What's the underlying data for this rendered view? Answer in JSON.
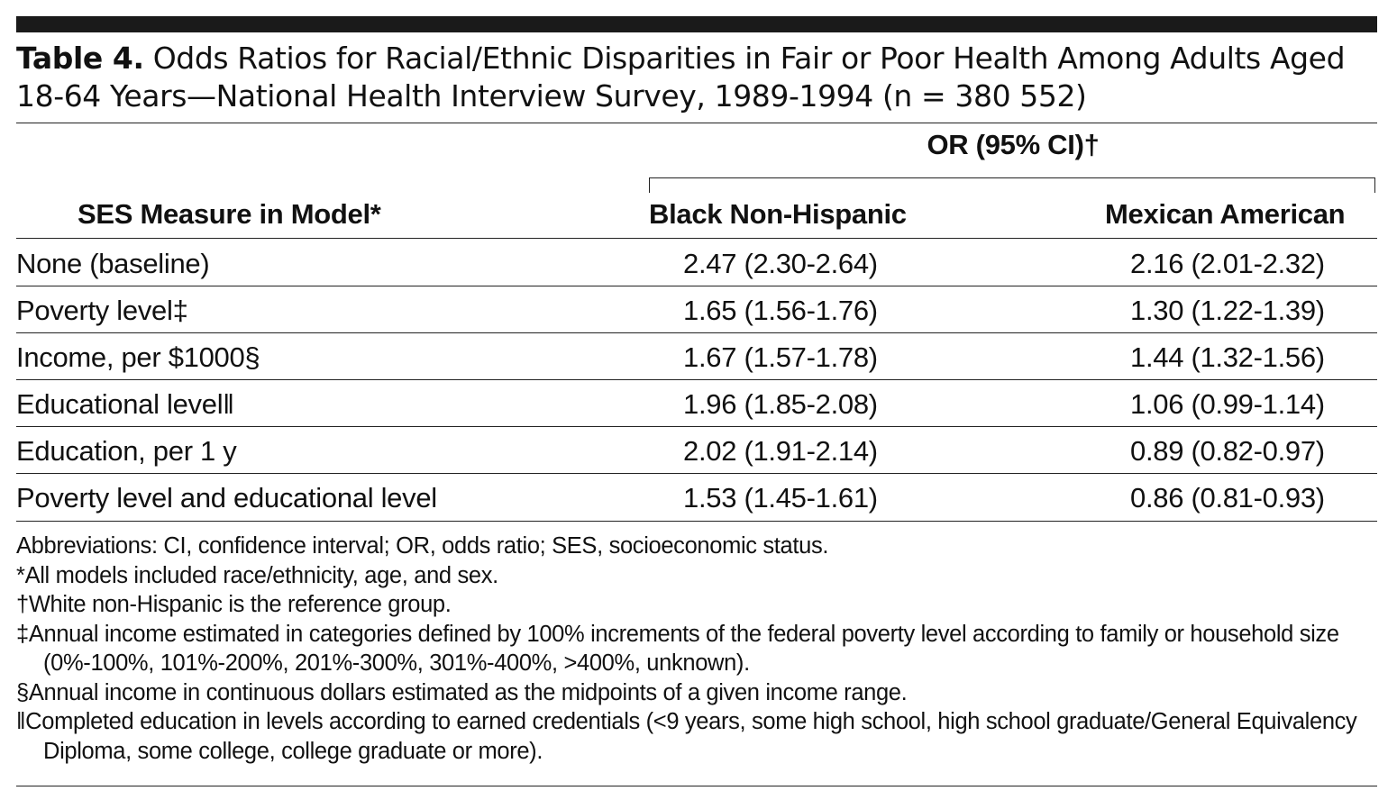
{
  "caption": {
    "label": "Table 4.",
    "text": "Odds Ratios for Racial/Ethnic Disparities in Fair or Poor Health Among Adults Aged 18-64 Years—National Health Interview Survey, 1989-1994 (n = 380 552)"
  },
  "header": {
    "group": "OR (95% CI)†",
    "ses": "SES Measure in Model*",
    "black": "Black Non-Hispanic",
    "mexican": "Mexican American"
  },
  "rows": [
    {
      "measure": "None (baseline)",
      "black": "2.47 (2.30-2.64)",
      "mexican": "2.16 (2.01-2.32)"
    },
    {
      "measure": "Poverty level‡",
      "black": "1.65 (1.56-1.76)",
      "mexican": "1.30 (1.22-1.39)"
    },
    {
      "measure": "Income, per $1000§",
      "black": "1.67 (1.57-1.78)",
      "mexican": "1.44 (1.32-1.56)"
    },
    {
      "measure": "Educational level‖",
      "black": "1.96 (1.85-2.08)",
      "mexican": "1.06 (0.99-1.14)"
    },
    {
      "measure": "Education, per 1 y",
      "black": "2.02 (1.91-2.14)",
      "mexican": "0.89 (0.82-0.97)"
    },
    {
      "measure": "Poverty level and educational level",
      "black": "1.53 (1.45-1.61)",
      "mexican": "0.86 (0.81-0.93)"
    }
  ],
  "footnotes": [
    "Abbreviations: CI, confidence interval; OR, odds ratio; SES, socioeconomic status.",
    "*All models included race/ethnicity, age, and sex.",
    "†White non-Hispanic is the reference group.",
    "‡Annual income estimated in categories defined by 100% increments of the federal poverty level according to family or household size (0%-100%, 101%-200%, 201%-300%, 301%-400%, >400%, unknown).",
    "§Annual income in continuous dollars estimated as the midpoints of a given income range.",
    "‖Completed education in levels according to earned credentials (<9 years, some high school, high school graduate/General Equivalency Diploma, some college, college graduate or more)."
  ]
}
